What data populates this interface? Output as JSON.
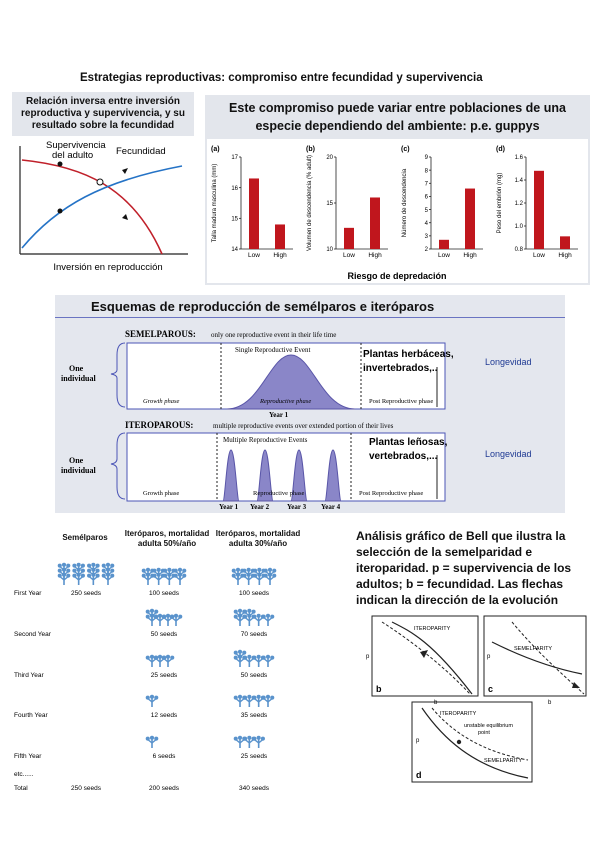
{
  "page_title": "Estrategias reproductivas: compromiso entre fecundidad y supervivencia",
  "panel_tradeoff": {
    "title": "Relación inversa entre inversión reproductiva y supervivencia, y su resultado sobre la fecundidad",
    "label_survival_1": "Supervivencia",
    "label_survival_2": "del adulto",
    "label_fecundity": "Fecundidad",
    "xlabel": "Inversión en reproducción"
  },
  "panel_guppy": {
    "title_line1": "Este compromiso puede variar entre poblaciones de una",
    "title_line2": "especie dependiendo del ambiente: p.e. guppys",
    "xlabel_common": "Riesgo de depredación",
    "bar_color": "#c0161d"
  },
  "chart_data": [
    {
      "type": "bar",
      "panel": "(a)",
      "ylabel": "Talla madura masculina (mm)",
      "categories": [
        "Low",
        "High"
      ],
      "values": [
        16.3,
        14.8
      ],
      "ylim": [
        14,
        17
      ],
      "yticks": [
        "14",
        "15",
        "16",
        "17"
      ]
    },
    {
      "type": "bar",
      "panel": "(b)",
      "ylabel": "Volumen de descendencia (% adult)",
      "categories": [
        "Low",
        "High"
      ],
      "values": [
        12.3,
        15.6
      ],
      "ylim": [
        10,
        20
      ],
      "yticks": [
        "10",
        "15",
        "20"
      ]
    },
    {
      "type": "bar",
      "panel": "(c)",
      "ylabel": "Número de descendencia",
      "categories": [
        "Low",
        "High"
      ],
      "values": [
        2.7,
        6.6
      ],
      "ylim": [
        2,
        9
      ],
      "yticks": [
        "2",
        "3",
        "4",
        "5",
        "6",
        "7",
        "8",
        "9"
      ]
    },
    {
      "type": "bar",
      "panel": "(d)",
      "ylabel": "Peso del embrión (mg)",
      "categories": [
        "Low",
        "High"
      ],
      "values": [
        1.48,
        0.91
      ],
      "ylim": [
        0.8,
        1.6
      ],
      "yticks": [
        "0.8",
        "1.0",
        "1.2",
        "1.4",
        "1.6"
      ]
    }
  ],
  "schemes": {
    "title": "Esquemas de reproducción de semélparos e iteróparos",
    "semelparous_heading": "SEMELPAROUS:",
    "semelparous_desc": "only one reproductive event in their life time",
    "single_event": "Single Reproductive Event",
    "iteroparous_heading": "ITEROPAROUS:",
    "iteroparous_desc": "multiple reproductive events over extended portion of their lives",
    "multiple_events": "Multiple Reproductive Events",
    "one_individual_1": "One",
    "one_individual_2": "individual",
    "growth_phase": "Growth phase",
    "reproductive_phase": "Reproductive phase",
    "post_reproductive_phase": "Post Reproductive phase",
    "year1": "Year 1",
    "year2": "Year 2",
    "year3": "Year 3",
    "year4": "Year 4",
    "semel_examples_1": "Plantas herbáceas,",
    "semel_examples_2": "invertebrados,..",
    "itero_examples_1": "Plantas leñosas,",
    "itero_examples_2": "vertebrados,...",
    "longevity": "Longevidad"
  },
  "seeds_table": {
    "col1": "Semélparos",
    "col2_1": "Iteróparos, mortalidad",
    "col2_2": "adulta 50%/año",
    "col3_1": "Iteróparos, mortalidad",
    "col3_2": "adulta 30%/año",
    "rows": [
      {
        "label": "First Year",
        "c1": "250 seeds",
        "c2": "100 seeds",
        "c3": "100 seeds"
      },
      {
        "label": "Second Year",
        "c1": "",
        "c2": "50 seeds",
        "c3": "70 seeds"
      },
      {
        "label": "Third Year",
        "c1": "",
        "c2": "25 seeds",
        "c3": "50 seeds"
      },
      {
        "label": "Fourth Year",
        "c1": "",
        "c2": "12 seeds",
        "c3": "35 seeds"
      },
      {
        "label": "Fifth Year",
        "c1": "",
        "c2": "6 seeds",
        "c3": "25 seeds"
      },
      {
        "label": "etc......",
        "c1": "",
        "c2": "",
        "c3": ""
      },
      {
        "label": "Total",
        "c1": "250 seeds",
        "c2": "200 seeds",
        "c3": "340 seeds"
      }
    ]
  },
  "bell": {
    "caption": "Análisis gráfico de Bell que ilustra la selección de la semelparidad e iteroparidad. p = supervivencia de los adultos; b = fecundidad. Las flechas indican la dirección de la evolución",
    "iteroparity": "ITEROPARITY",
    "semelparity": "SEMELPARITY",
    "unstable_1": "unstable equilibrium",
    "unstable_2": "point",
    "label_b_panel": "b",
    "label_c_panel": "c",
    "label_d_panel": "d",
    "axis_p": "p",
    "axis_b": "b"
  }
}
